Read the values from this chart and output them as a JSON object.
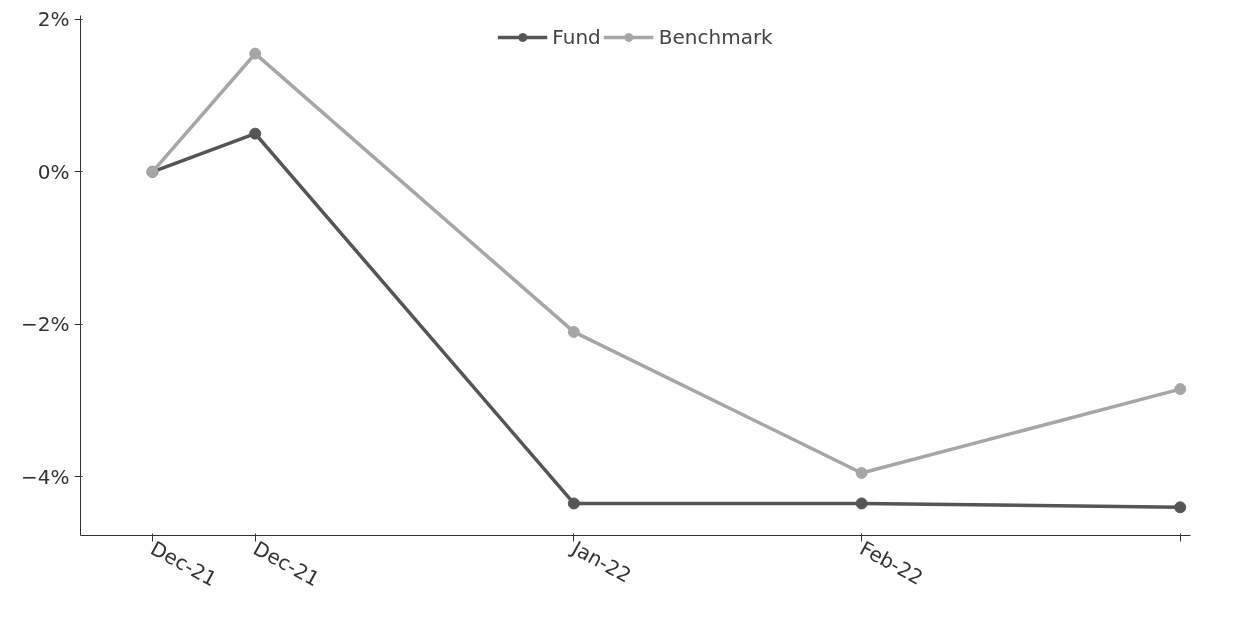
{
  "chart_data": {
    "type": "line",
    "x": [
      "2021-12-21",
      "2021-12-31",
      "2022-01-31",
      "2022-02-28",
      "2022-03-31"
    ],
    "series": [
      {
        "name": "Fund",
        "color": "#555555",
        "values": [
          0,
          0.5,
          -4.35,
          -4.35,
          -4.4
        ]
      },
      {
        "name": "Benchmark",
        "color": "#a6a6a6",
        "values": [
          0,
          1.55,
          -2.1,
          -3.95,
          -2.85
        ]
      }
    ],
    "xlim": [
      "2021-12-14",
      "2022-04-01"
    ],
    "xticks": [
      {
        "value": "2021-12-21",
        "label": "Dec-21"
      },
      {
        "value": "2021-12-31",
        "label": "Dec-21"
      },
      {
        "value": "2022-01-31",
        "label": "Jan-22"
      },
      {
        "value": "2022-02-28",
        "label": "Feb-22"
      },
      {
        "value": "2022-03-31",
        "label": null
      }
    ],
    "ylim": [
      -4.77,
      2.05
    ],
    "yticks": [
      {
        "value": 2,
        "label": "2%"
      },
      {
        "value": 0,
        "label": "0%"
      },
      {
        "value": -2,
        "label": "−2%"
      },
      {
        "value": -4,
        "label": "−4%"
      }
    ],
    "grid": false,
    "legend": "top",
    "marker": "circle",
    "line_style": "solid"
  }
}
